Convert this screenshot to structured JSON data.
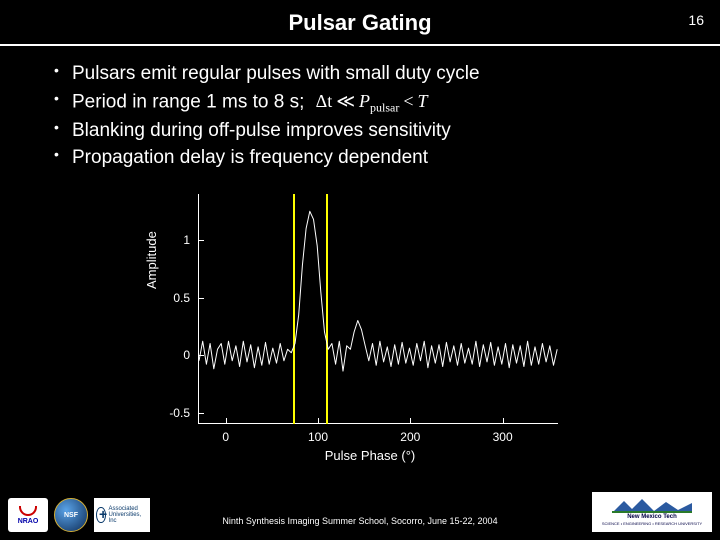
{
  "page_number": "16",
  "title": "Pulsar Gating",
  "bullets": [
    "Pulsars emit regular pulses with small duty cycle",
    "Period in range 1 ms to 8 s;",
    "Blanking during off-pulse improves sensitivity",
    "Propagation delay is frequency dependent"
  ],
  "equation": {
    "lhs": "Δt",
    "op1": "≪",
    "mid_var": "P",
    "mid_sub": "pulsar",
    "op2": "<",
    "rhs": "T"
  },
  "chart": {
    "type": "line",
    "xlabel": "Pulse Phase (°)",
    "ylabel": "Amplitude",
    "xlim": [
      -30,
      360
    ],
    "ylim": [
      -0.6,
      1.4
    ],
    "xticks": [
      0,
      100,
      200,
      300
    ],
    "yticks": [
      -0.5,
      0,
      0.5,
      1
    ],
    "axis_color": "#ffffff",
    "background_color": "#000000",
    "line_color": "#ffffff",
    "line_width": 1,
    "gate_color": "#ffff00",
    "gate_positions_deg": [
      72,
      108
    ],
    "xtick_labels": [
      "0",
      "100",
      "200",
      "300"
    ],
    "ytick_labels": [
      "-0.5",
      "0",
      "0.5",
      "1"
    ],
    "label_fontsize": 13,
    "tick_fontsize": 12,
    "series": [
      {
        "x": -30,
        "y": -0.05
      },
      {
        "x": -26,
        "y": 0.12
      },
      {
        "x": -22,
        "y": -0.08
      },
      {
        "x": -18,
        "y": 0.1
      },
      {
        "x": -14,
        "y": -0.12
      },
      {
        "x": -10,
        "y": 0.05
      },
      {
        "x": -6,
        "y": 0.1
      },
      {
        "x": -2,
        "y": -0.08
      },
      {
        "x": 2,
        "y": 0.12
      },
      {
        "x": 6,
        "y": -0.05
      },
      {
        "x": 10,
        "y": 0.08
      },
      {
        "x": 14,
        "y": -0.1
      },
      {
        "x": 18,
        "y": 0.12
      },
      {
        "x": 22,
        "y": -0.06
      },
      {
        "x": 26,
        "y": 0.09
      },
      {
        "x": 30,
        "y": -0.11
      },
      {
        "x": 34,
        "y": 0.07
      },
      {
        "x": 38,
        "y": -0.09
      },
      {
        "x": 42,
        "y": 0.11
      },
      {
        "x": 46,
        "y": -0.08
      },
      {
        "x": 50,
        "y": 0.06
      },
      {
        "x": 54,
        "y": -0.07
      },
      {
        "x": 58,
        "y": 0.1
      },
      {
        "x": 62,
        "y": -0.05
      },
      {
        "x": 66,
        "y": 0.05
      },
      {
        "x": 70,
        "y": 0.02
      },
      {
        "x": 74,
        "y": 0.1
      },
      {
        "x": 78,
        "y": 0.35
      },
      {
        "x": 82,
        "y": 0.78
      },
      {
        "x": 86,
        "y": 1.1
      },
      {
        "x": 90,
        "y": 1.25
      },
      {
        "x": 94,
        "y": 1.18
      },
      {
        "x": 98,
        "y": 0.95
      },
      {
        "x": 102,
        "y": 0.55
      },
      {
        "x": 106,
        "y": 0.2
      },
      {
        "x": 110,
        "y": 0.05
      },
      {
        "x": 114,
        "y": 0.1
      },
      {
        "x": 118,
        "y": -0.08
      },
      {
        "x": 122,
        "y": 0.12
      },
      {
        "x": 126,
        "y": -0.14
      },
      {
        "x": 130,
        "y": 0.08
      },
      {
        "x": 134,
        "y": 0.05
      },
      {
        "x": 138,
        "y": 0.2
      },
      {
        "x": 142,
        "y": 0.3
      },
      {
        "x": 146,
        "y": 0.22
      },
      {
        "x": 150,
        "y": 0.08
      },
      {
        "x": 154,
        "y": -0.05
      },
      {
        "x": 158,
        "y": 0.1
      },
      {
        "x": 162,
        "y": -0.09
      },
      {
        "x": 166,
        "y": 0.12
      },
      {
        "x": 170,
        "y": -0.06
      },
      {
        "x": 174,
        "y": 0.07
      },
      {
        "x": 178,
        "y": -0.1
      },
      {
        "x": 182,
        "y": 0.09
      },
      {
        "x": 186,
        "y": -0.08
      },
      {
        "x": 190,
        "y": 0.11
      },
      {
        "x": 194,
        "y": -0.07
      },
      {
        "x": 198,
        "y": 0.06
      },
      {
        "x": 202,
        "y": -0.09
      },
      {
        "x": 206,
        "y": 0.1
      },
      {
        "x": 210,
        "y": -0.05
      },
      {
        "x": 214,
        "y": 0.12
      },
      {
        "x": 218,
        "y": -0.11
      },
      {
        "x": 222,
        "y": 0.08
      },
      {
        "x": 226,
        "y": -0.07
      },
      {
        "x": 230,
        "y": 0.09
      },
      {
        "x": 234,
        "y": -0.1
      },
      {
        "x": 238,
        "y": 0.11
      },
      {
        "x": 242,
        "y": -0.06
      },
      {
        "x": 246,
        "y": 0.08
      },
      {
        "x": 250,
        "y": -0.09
      },
      {
        "x": 254,
        "y": 0.1
      },
      {
        "x": 258,
        "y": -0.07
      },
      {
        "x": 262,
        "y": 0.06
      },
      {
        "x": 266,
        "y": -0.08
      },
      {
        "x": 270,
        "y": 0.12
      },
      {
        "x": 274,
        "y": -0.1
      },
      {
        "x": 278,
        "y": 0.09
      },
      {
        "x": 282,
        "y": -0.06
      },
      {
        "x": 286,
        "y": 0.11
      },
      {
        "x": 290,
        "y": -0.09
      },
      {
        "x": 294,
        "y": 0.07
      },
      {
        "x": 298,
        "y": -0.08
      },
      {
        "x": 302,
        "y": 0.1
      },
      {
        "x": 306,
        "y": -0.11
      },
      {
        "x": 310,
        "y": 0.09
      },
      {
        "x": 314,
        "y": -0.07
      },
      {
        "x": 318,
        "y": 0.08
      },
      {
        "x": 322,
        "y": -0.1
      },
      {
        "x": 326,
        "y": 0.12
      },
      {
        "x": 330,
        "y": -0.09
      },
      {
        "x": 334,
        "y": 0.07
      },
      {
        "x": 338,
        "y": -0.08
      },
      {
        "x": 342,
        "y": 0.1
      },
      {
        "x": 346,
        "y": -0.06
      },
      {
        "x": 350,
        "y": 0.08
      },
      {
        "x": 354,
        "y": -0.09
      },
      {
        "x": 358,
        "y": 0.05
      }
    ]
  },
  "footer_text": "Ninth Synthesis Imaging Summer School, Socorro, June 15-22, 2004",
  "logos": {
    "nrao": {
      "text": "NRAO"
    },
    "nsf": {
      "text": "NSF"
    },
    "aui": {
      "text": "Associated Universities, Inc"
    },
    "nmt": {
      "text": "New Mexico Tech",
      "sub": "SCIENCE • ENGINEERING • RESEARCH UNIVERSITY"
    }
  }
}
